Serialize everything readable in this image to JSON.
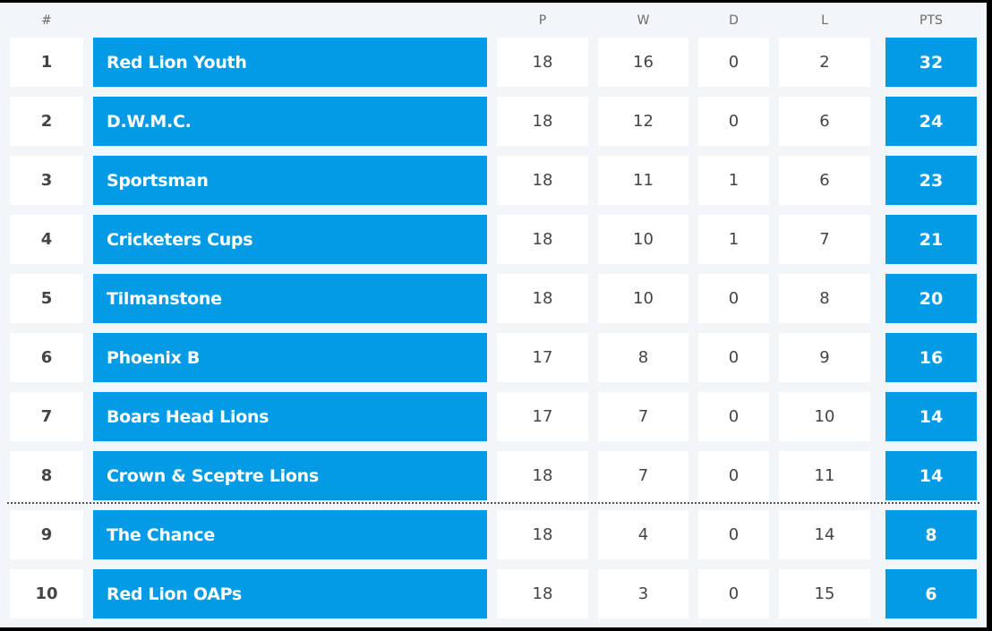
{
  "headers": {
    "pos": "#",
    "team": "",
    "p": "P",
    "w": "W",
    "d": "D",
    "l": "L",
    "pts": "PTS"
  },
  "colors": {
    "accent": "#039be5",
    "background": "#f3f6f9",
    "cell": "#ffffff"
  },
  "rows": [
    {
      "pos": "1",
      "team": "Red Lion Youth",
      "p": "18",
      "w": "16",
      "d": "0",
      "l": "2",
      "pts": "32"
    },
    {
      "pos": "2",
      "team": "D.W.M.C.",
      "p": "18",
      "w": "12",
      "d": "0",
      "l": "6",
      "pts": "24"
    },
    {
      "pos": "3",
      "team": "Sportsman",
      "p": "18",
      "w": "11",
      "d": "1",
      "l": "6",
      "pts": "23"
    },
    {
      "pos": "4",
      "team": "Cricketers Cups",
      "p": "18",
      "w": "10",
      "d": "1",
      "l": "7",
      "pts": "21"
    },
    {
      "pos": "5",
      "team": "Tilmanstone",
      "p": "18",
      "w": "10",
      "d": "0",
      "l": "8",
      "pts": "20"
    },
    {
      "pos": "6",
      "team": "Phoenix B",
      "p": "17",
      "w": "8",
      "d": "0",
      "l": "9",
      "pts": "16"
    },
    {
      "pos": "7",
      "team": "Boars Head Lions",
      "p": "17",
      "w": "7",
      "d": "0",
      "l": "10",
      "pts": "14"
    },
    {
      "pos": "8",
      "team": "Crown & Sceptre Lions",
      "p": "18",
      "w": "7",
      "d": "0",
      "l": "11",
      "pts": "14"
    },
    {
      "pos": "9",
      "team": "The Chance",
      "p": "18",
      "w": "4",
      "d": "0",
      "l": "14",
      "pts": "8"
    },
    {
      "pos": "10",
      "team": "Red Lion OAPs",
      "p": "18",
      "w": "3",
      "d": "0",
      "l": "15",
      "pts": "6"
    }
  ]
}
